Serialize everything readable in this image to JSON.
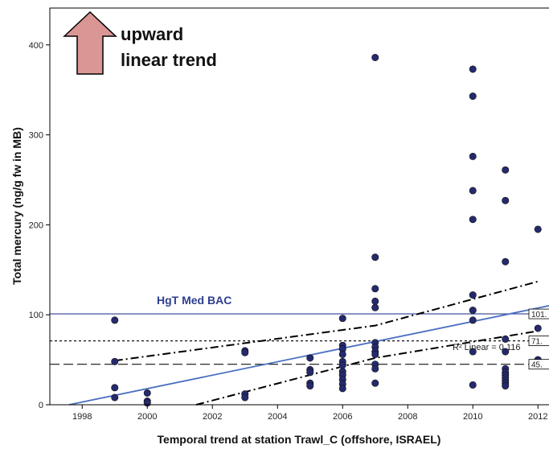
{
  "chart_data": {
    "type": "scatter",
    "xlabel": "Temporal trend at station Trawl_C (offshore, ISRAEL)",
    "ylabel": "Total mercury (ng/g fw in MB)",
    "xlim": [
      1997,
      2012.6
    ],
    "ylim": [
      0,
      440
    ],
    "xticks": [
      1998,
      2000,
      2002,
      2004,
      2006,
      2008,
      2010,
      2012
    ],
    "yticks": [
      0,
      100,
      200,
      300,
      400
    ],
    "grid": false,
    "points": [
      {
        "x": 1999,
        "y": 94
      },
      {
        "x": 1999,
        "y": 48
      },
      {
        "x": 1999,
        "y": 19
      },
      {
        "x": 1999,
        "y": 8
      },
      {
        "x": 2000,
        "y": 13
      },
      {
        "x": 2000,
        "y": 4
      },
      {
        "x": 2000,
        "y": 2
      },
      {
        "x": 2003,
        "y": 60
      },
      {
        "x": 2003,
        "y": 58
      },
      {
        "x": 2003,
        "y": 12
      },
      {
        "x": 2003,
        "y": 8
      },
      {
        "x": 2005,
        "y": 52
      },
      {
        "x": 2005,
        "y": 39
      },
      {
        "x": 2005,
        "y": 36
      },
      {
        "x": 2005,
        "y": 24
      },
      {
        "x": 2005,
        "y": 21
      },
      {
        "x": 2006,
        "y": 96
      },
      {
        "x": 2006,
        "y": 66
      },
      {
        "x": 2006,
        "y": 62
      },
      {
        "x": 2006,
        "y": 56
      },
      {
        "x": 2006,
        "y": 48
      },
      {
        "x": 2006,
        "y": 44
      },
      {
        "x": 2006,
        "y": 37
      },
      {
        "x": 2006,
        "y": 33
      },
      {
        "x": 2006,
        "y": 28
      },
      {
        "x": 2006,
        "y": 23
      },
      {
        "x": 2006,
        "y": 18
      },
      {
        "x": 2007,
        "y": 386
      },
      {
        "x": 2007,
        "y": 164
      },
      {
        "x": 2007,
        "y": 129
      },
      {
        "x": 2007,
        "y": 115
      },
      {
        "x": 2007,
        "y": 108
      },
      {
        "x": 2007,
        "y": 69
      },
      {
        "x": 2007,
        "y": 64
      },
      {
        "x": 2007,
        "y": 59
      },
      {
        "x": 2007,
        "y": 56
      },
      {
        "x": 2007,
        "y": 45
      },
      {
        "x": 2007,
        "y": 40
      },
      {
        "x": 2007,
        "y": 24
      },
      {
        "x": 2010,
        "y": 373
      },
      {
        "x": 2010,
        "y": 343
      },
      {
        "x": 2010,
        "y": 276
      },
      {
        "x": 2010,
        "y": 238
      },
      {
        "x": 2010,
        "y": 206
      },
      {
        "x": 2010,
        "y": 122
      },
      {
        "x": 2010,
        "y": 105
      },
      {
        "x": 2010,
        "y": 94
      },
      {
        "x": 2010,
        "y": 59
      },
      {
        "x": 2010,
        "y": 22
      },
      {
        "x": 2011,
        "y": 261
      },
      {
        "x": 2011,
        "y": 227
      },
      {
        "x": 2011,
        "y": 159
      },
      {
        "x": 2011,
        "y": 73
      },
      {
        "x": 2011,
        "y": 59
      },
      {
        "x": 2011,
        "y": 40
      },
      {
        "x": 2011,
        "y": 36
      },
      {
        "x": 2011,
        "y": 33
      },
      {
        "x": 2011,
        "y": 30
      },
      {
        "x": 2011,
        "y": 27
      },
      {
        "x": 2011,
        "y": 24
      },
      {
        "x": 2011,
        "y": 21
      },
      {
        "x": 2012,
        "y": 195
      },
      {
        "x": 2012,
        "y": 85
      },
      {
        "x": 2012,
        "y": 50
      }
    ],
    "marker_color": "#252a6e",
    "fit_line": {
      "x": [
        1997.6,
        2012.6
      ],
      "y": [
        0,
        112
      ],
      "color": "#4a6fc0"
    },
    "ci_upper": {
      "x": [
        1999,
        2007,
        2012
      ],
      "y": [
        49,
        88,
        137
      ]
    },
    "ci_lower": {
      "x": [
        2001.5,
        2007,
        2012
      ],
      "y": [
        0,
        52,
        82
      ]
    },
    "reference_lines": [
      {
        "y": 101,
        "label": "101.",
        "style": "solid",
        "color": "#2e3f8f"
      },
      {
        "y": 71,
        "label": "71.",
        "style": "dotted",
        "color": "#111111"
      },
      {
        "y": 45,
        "label": "45.",
        "style": "dashed",
        "color": "#111111"
      }
    ],
    "annotations": {
      "bac_label": "HgT Med BAC",
      "r2_label": "R² Linear = 0.116",
      "trend_line1": "upward",
      "trend_line2": "linear trend"
    },
    "arrow_color": "#d99694"
  }
}
